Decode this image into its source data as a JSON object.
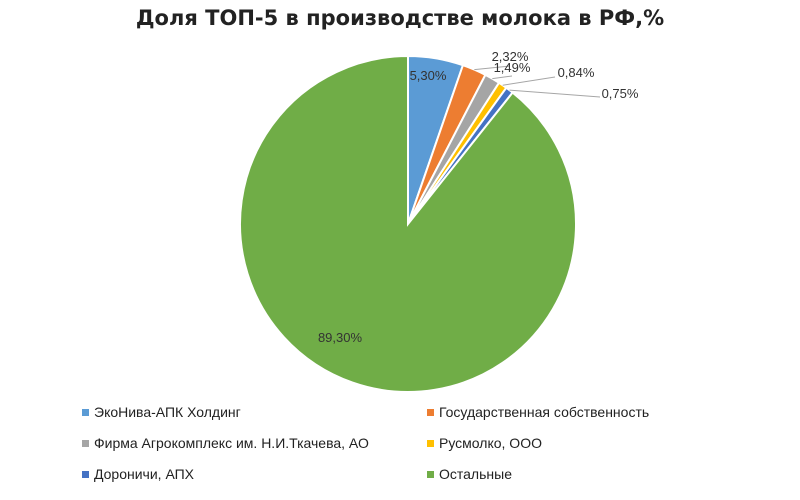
{
  "chart_data": {
    "type": "pie",
    "title": "Доля ТОП-5 в производстве молока в РФ,%",
    "slices": [
      {
        "name": "ЭкоНива-АПК Холдинг",
        "value": 5.3,
        "label": "5,30%",
        "color": "#5b9bd5"
      },
      {
        "name": "Государственная собственность",
        "value": 2.32,
        "label": "2,32%",
        "color": "#ed7d31"
      },
      {
        "name": "Фирма Агрокомплекс им. Н.И.Ткачева, АО",
        "value": 1.49,
        "label": "1,49%",
        "color": "#a5a5a5"
      },
      {
        "name": "Русмолко, ООО",
        "value": 0.84,
        "label": "0,84%",
        "color": "#ffc000"
      },
      {
        "name": "Дороничи, АПХ",
        "value": 0.75,
        "label": "0,75%",
        "color": "#4472c4"
      },
      {
        "name": "Остальные",
        "value": 89.3,
        "label": "89,30%",
        "color": "#70ad47"
      }
    ],
    "legend_position": "bottom",
    "grid": false
  }
}
